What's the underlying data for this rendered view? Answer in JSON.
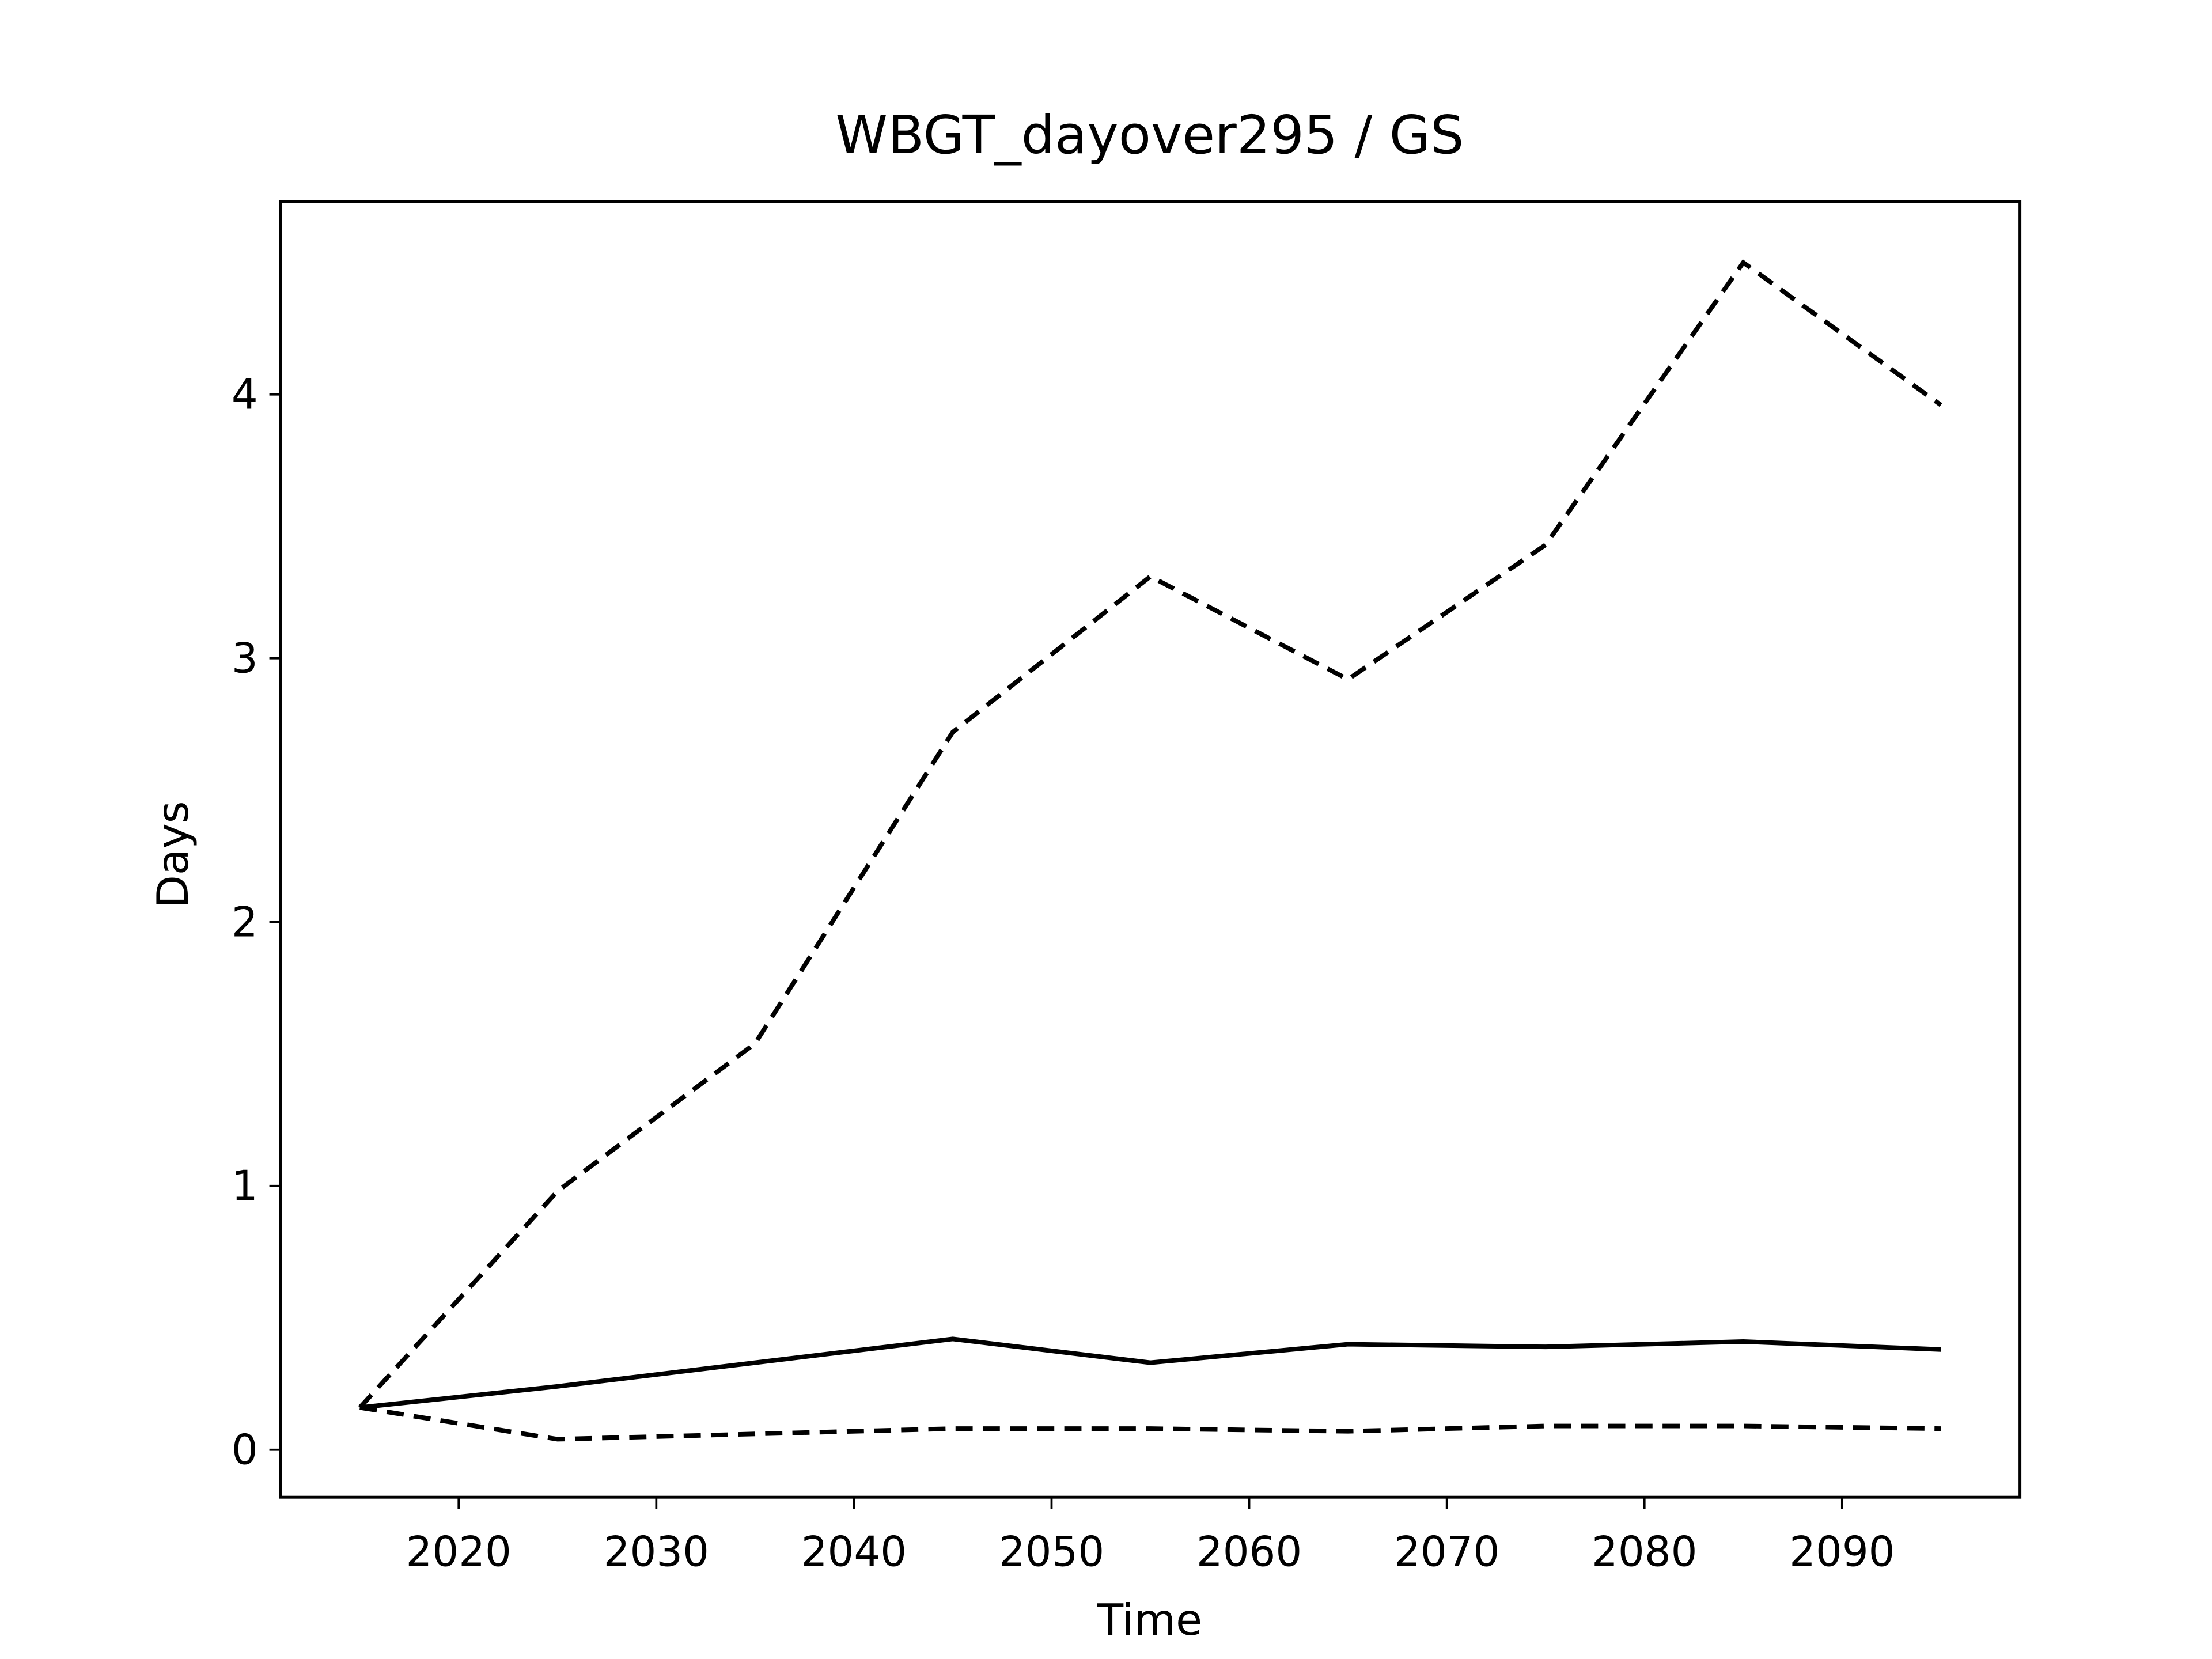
{
  "chart_data": {
    "type": "line",
    "title": "WBGT_dayover295 / GS",
    "x_label": "Time",
    "y_label": "Days",
    "x": [
      2015,
      2025,
      2035,
      2045,
      2055,
      2065,
      2075,
      2085,
      2095
    ],
    "series": [
      {
        "color": "#000000",
        "linestyle": "dashed",
        "values": [
          0.16,
          0.98,
          1.54,
          2.72,
          3.31,
          2.92,
          3.43,
          4.5,
          3.96
        ]
      },
      {
        "color": "#000000",
        "linestyle": "solid",
        "values": [
          0.16,
          0.24,
          0.33,
          0.42,
          0.33,
          0.4,
          0.39,
          0.41,
          0.38
        ]
      },
      {
        "color": "#000000",
        "linestyle": "dashed",
        "values": [
          0.16,
          0.04,
          0.06,
          0.08,
          0.08,
          0.07,
          0.09,
          0.09,
          0.08
        ]
      }
    ],
    "xlim": [
      2011,
      2099
    ],
    "ylim": [
      -0.18,
      4.73
    ],
    "xticks": [
      2020,
      2030,
      2040,
      2050,
      2060,
      2070,
      2080,
      2090
    ],
    "yticks": [
      0,
      1,
      2,
      3,
      4
    ],
    "grid": false
  }
}
